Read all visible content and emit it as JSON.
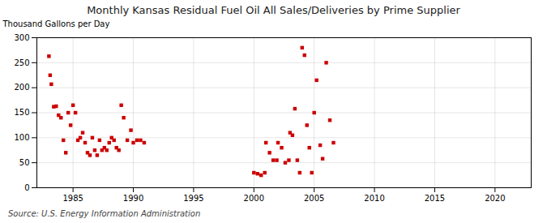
{
  "chart_data": {
    "type": "scatter",
    "title": "Monthly Kansas Residual Fuel Oil All Sales/Deliveries by Prime Supplier",
    "ylabel": "Thousand Gallons per Day",
    "source": "Source: U.S. Energy Information Administration",
    "color": "#cc0000",
    "marker": "square",
    "grid": true,
    "xlim": [
      1982,
      2023
    ],
    "ylim": [
      0,
      300
    ],
    "xticks": [
      1985,
      1990,
      1995,
      2000,
      2005,
      2010,
      2015,
      2020
    ],
    "yticks": [
      0,
      50,
      100,
      150,
      200,
      250,
      300
    ],
    "x": [
      1983.0,
      1983.1,
      1983.2,
      1983.4,
      1983.6,
      1983.8,
      1984.0,
      1984.2,
      1984.4,
      1984.6,
      1984.8,
      1985.0,
      1985.2,
      1985.4,
      1985.6,
      1985.8,
      1986.0,
      1986.2,
      1986.4,
      1986.6,
      1986.8,
      1987.0,
      1987.2,
      1987.4,
      1987.6,
      1987.8,
      1988.0,
      1988.2,
      1988.4,
      1988.6,
      1988.8,
      1989.0,
      1989.2,
      1989.5,
      1989.8,
      1990.0,
      1990.3,
      1990.6,
      1990.9,
      2000.0,
      2000.3,
      2000.6,
      2000.9,
      2001.0,
      2001.3,
      2001.6,
      2001.9,
      2002.0,
      2002.3,
      2002.6,
      2002.9,
      2003.0,
      2003.2,
      2003.4,
      2003.6,
      2003.8,
      2004.0,
      2004.2,
      2004.4,
      2004.6,
      2004.8,
      2005.0,
      2005.2,
      2005.5,
      2005.7,
      2006.0,
      2006.3,
      2006.6
    ],
    "values": [
      263,
      225,
      207,
      162,
      163,
      145,
      140,
      95,
      70,
      150,
      125,
      165,
      150,
      95,
      100,
      110,
      90,
      70,
      65,
      100,
      75,
      65,
      95,
      75,
      80,
      75,
      90,
      100,
      95,
      80,
      75,
      165,
      140,
      95,
      115,
      90,
      95,
      95,
      90,
      30,
      28,
      25,
      30,
      90,
      70,
      55,
      55,
      90,
      80,
      50,
      55,
      110,
      105,
      158,
      55,
      30,
      280,
      265,
      125,
      80,
      30,
      150,
      215,
      85,
      58,
      250,
      135,
      90
    ]
  }
}
